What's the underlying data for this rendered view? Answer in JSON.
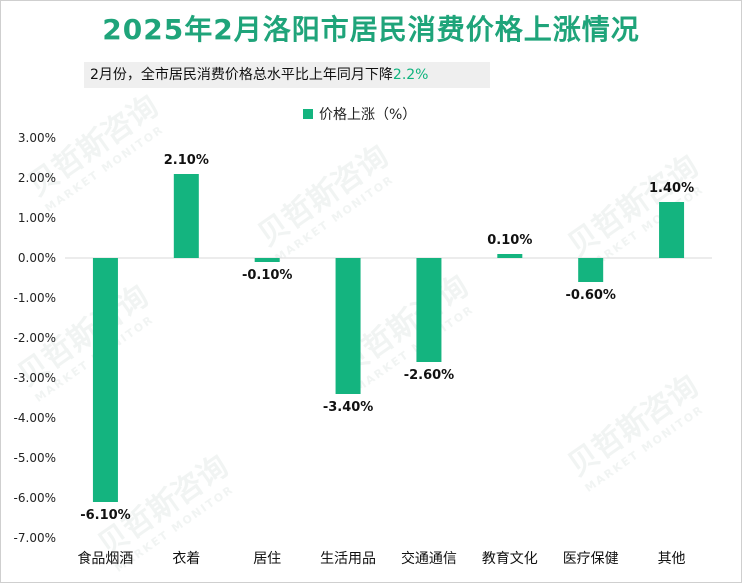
{
  "title": "2025年2月洛阳市居民消费价格上涨情况",
  "subtitle": {
    "text": "2月份，全市居民消费价格总水平比上年同月下降",
    "highlight": "2.2%"
  },
  "watermark": {
    "cn": "贝哲斯咨询",
    "en": "MARKET MONITOR"
  },
  "colors": {
    "bar": "#14b47f",
    "title": "#1fa47a",
    "highlight": "#10b47f"
  },
  "chart_data": {
    "type": "bar",
    "categories": [
      "食品烟酒",
      "衣着",
      "居住",
      "生活用品",
      "交通通信",
      "教育文化",
      "医疗保健",
      "其他"
    ],
    "series": [
      {
        "name": "价格上涨（%）",
        "values": [
          -6.1,
          2.1,
          -0.1,
          -3.4,
          -2.6,
          0.1,
          -0.6,
          1.4
        ],
        "labels": [
          "-6.10%",
          "2.10%",
          "-0.10%",
          "-3.40%",
          "-2.60%",
          "0.10%",
          "-0.60%",
          "1.40%"
        ]
      }
    ],
    "ylim": [
      -7,
      3
    ],
    "yticks": [
      3,
      2,
      1,
      0,
      -1,
      -2,
      -3,
      -4,
      -5,
      -6,
      -7
    ],
    "ytick_labels": [
      "3.00%",
      "2.00%",
      "1.00%",
      "0.00%",
      "-1.00%",
      "-2.00%",
      "-3.00%",
      "-4.00%",
      "-5.00%",
      "-6.00%",
      "-7.00%"
    ],
    "legend_position": "top-center",
    "grid": false
  }
}
